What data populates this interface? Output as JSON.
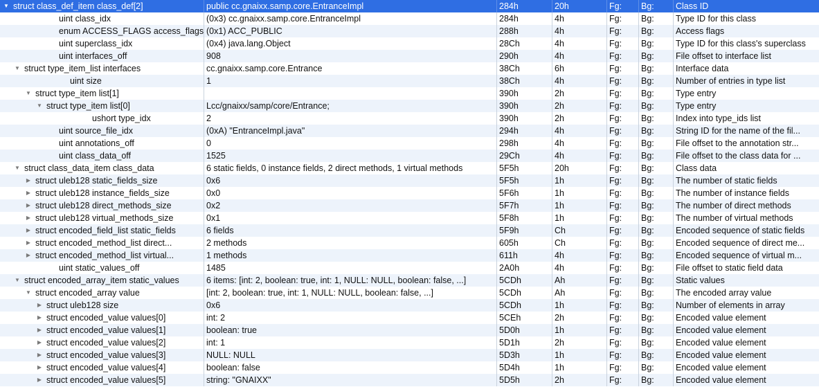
{
  "rows": [
    {
      "name": "struct class_def_item class_def[2]",
      "value": "public cc.gnaixx.samp.core.EntranceImpl",
      "start": "284h",
      "size": "20h",
      "fg": "Fg:",
      "bg": "Bg:",
      "comment": "Class ID",
      "depth": 0,
      "toggle": "expanded",
      "selected": true
    },
    {
      "name": "uint class_idx",
      "value": "(0x3) cc.gnaixx.samp.core.EntranceImpl",
      "start": "284h",
      "size": "4h",
      "fg": "Fg:",
      "bg": "Bg:",
      "comment": "Type ID for this class",
      "depth": 1,
      "toggle": "none"
    },
    {
      "name": "enum ACCESS_FLAGS access_flags",
      "value": "(0x1) ACC_PUBLIC",
      "start": "288h",
      "size": "4h",
      "fg": "Fg:",
      "bg": "Bg:",
      "comment": "Access flags",
      "depth": 1,
      "toggle": "none"
    },
    {
      "name": "uint superclass_idx",
      "value": "(0x4) java.lang.Object",
      "start": "28Ch",
      "size": "4h",
      "fg": "Fg:",
      "bg": "Bg:",
      "comment": "Type ID for this class's superclass",
      "depth": 1,
      "toggle": "none"
    },
    {
      "name": "uint interfaces_off",
      "value": "908",
      "start": "290h",
      "size": "4h",
      "fg": "Fg:",
      "bg": "Bg:",
      "comment": "File offset to interface list",
      "depth": 1,
      "toggle": "none"
    },
    {
      "name": "struct type_item_list interfaces",
      "value": "cc.gnaixx.samp.core.Entrance",
      "start": "38Ch",
      "size": "6h",
      "fg": "Fg:",
      "bg": "Bg:",
      "comment": "Interface data",
      "depth": 1,
      "toggle": "expanded"
    },
    {
      "name": "uint size",
      "value": "1",
      "start": "38Ch",
      "size": "4h",
      "fg": "Fg:",
      "bg": "Bg:",
      "comment": "Number of entries in type list",
      "depth": 2,
      "toggle": "none"
    },
    {
      "name": "struct type_item list[1]",
      "value": "",
      "start": "390h",
      "size": "2h",
      "fg": "Fg:",
      "bg": "Bg:",
      "comment": "Type entry",
      "depth": 2,
      "toggle": "expanded"
    },
    {
      "name": "struct type_item list[0]",
      "value": "Lcc/gnaixx/samp/core/Entrance;",
      "start": "390h",
      "size": "2h",
      "fg": "Fg:",
      "bg": "Bg:",
      "comment": "Type entry",
      "depth": 3,
      "toggle": "expanded"
    },
    {
      "name": "ushort type_idx",
      "value": "2",
      "start": "390h",
      "size": "2h",
      "fg": "Fg:",
      "bg": "Bg:",
      "comment": "Index into type_ids list",
      "depth": 4,
      "toggle": "none"
    },
    {
      "name": "uint source_file_idx",
      "value": "(0xA) \"EntranceImpl.java\"",
      "start": "294h",
      "size": "4h",
      "fg": "Fg:",
      "bg": "Bg:",
      "comment": "String ID for the name of the fil...",
      "depth": 1,
      "toggle": "none"
    },
    {
      "name": "uint annotations_off",
      "value": "0",
      "start": "298h",
      "size": "4h",
      "fg": "Fg:",
      "bg": "Bg:",
      "comment": "File offset to the annotation str...",
      "depth": 1,
      "toggle": "none"
    },
    {
      "name": "uint class_data_off",
      "value": "1525",
      "start": "29Ch",
      "size": "4h",
      "fg": "Fg:",
      "bg": "Bg:",
      "comment": "File offset to the class data for ...",
      "depth": 1,
      "toggle": "none"
    },
    {
      "name": "struct class_data_item class_data",
      "value": "6 static fields, 0 instance fields, 2 direct methods, 1 virtual methods",
      "start": "5F5h",
      "size": "20h",
      "fg": "Fg:",
      "bg": "Bg:",
      "comment": "Class data",
      "depth": 1,
      "toggle": "expanded"
    },
    {
      "name": "struct uleb128 static_fields_size",
      "value": "0x6",
      "start": "5F5h",
      "size": "1h",
      "fg": "Fg:",
      "bg": "Bg:",
      "comment": "The number of static fields",
      "depth": 2,
      "toggle": "collapsed"
    },
    {
      "name": "struct uleb128 instance_fields_size",
      "value": "0x0",
      "start": "5F6h",
      "size": "1h",
      "fg": "Fg:",
      "bg": "Bg:",
      "comment": "The number of instance fields",
      "depth": 2,
      "toggle": "collapsed"
    },
    {
      "name": "struct uleb128 direct_methods_size",
      "value": "0x2",
      "start": "5F7h",
      "size": "1h",
      "fg": "Fg:",
      "bg": "Bg:",
      "comment": "The number of direct methods",
      "depth": 2,
      "toggle": "collapsed"
    },
    {
      "name": "struct uleb128 virtual_methods_size",
      "value": "0x1",
      "start": "5F8h",
      "size": "1h",
      "fg": "Fg:",
      "bg": "Bg:",
      "comment": "The number of virtual methods",
      "depth": 2,
      "toggle": "collapsed"
    },
    {
      "name": "struct encoded_field_list static_fields",
      "value": "6 fields",
      "start": "5F9h",
      "size": "Ch",
      "fg": "Fg:",
      "bg": "Bg:",
      "comment": "Encoded sequence of static fields",
      "depth": 2,
      "toggle": "collapsed"
    },
    {
      "name": "struct encoded_method_list direct...",
      "value": "2 methods",
      "start": "605h",
      "size": "Ch",
      "fg": "Fg:",
      "bg": "Bg:",
      "comment": "Encoded sequence of direct me...",
      "depth": 2,
      "toggle": "collapsed"
    },
    {
      "name": "struct encoded_method_list virtual...",
      "value": "1 methods",
      "start": "611h",
      "size": "4h",
      "fg": "Fg:",
      "bg": "Bg:",
      "comment": "Encoded sequence of virtual m...",
      "depth": 2,
      "toggle": "collapsed"
    },
    {
      "name": "uint static_values_off",
      "value": "1485",
      "start": "2A0h",
      "size": "4h",
      "fg": "Fg:",
      "bg": "Bg:",
      "comment": "File offset to static field data",
      "depth": 1,
      "toggle": "none"
    },
    {
      "name": "struct encoded_array_item static_values",
      "value": "6 items: [int: 2, boolean: true, int: 1, NULL: NULL, boolean: false, ...]",
      "start": "5CDh",
      "size": "Ah",
      "fg": "Fg:",
      "bg": "Bg:",
      "comment": "Static values",
      "depth": 1,
      "toggle": "expanded"
    },
    {
      "name": "struct encoded_array value",
      "value": "[int: 2, boolean: true, int: 1, NULL: NULL, boolean: false, ...]",
      "start": "5CDh",
      "size": "Ah",
      "fg": "Fg:",
      "bg": "Bg:",
      "comment": "The encoded array value",
      "depth": 2,
      "toggle": "expanded"
    },
    {
      "name": "struct uleb128 size",
      "value": "0x6",
      "start": "5CDh",
      "size": "1h",
      "fg": "Fg:",
      "bg": "Bg:",
      "comment": "Number of elements in array",
      "depth": 3,
      "toggle": "collapsed"
    },
    {
      "name": "struct encoded_value values[0]",
      "value": "int: 2",
      "start": "5CEh",
      "size": "2h",
      "fg": "Fg:",
      "bg": "Bg:",
      "comment": "Encoded value element",
      "depth": 3,
      "toggle": "collapsed"
    },
    {
      "name": "struct encoded_value values[1]",
      "value": "boolean: true",
      "start": "5D0h",
      "size": "1h",
      "fg": "Fg:",
      "bg": "Bg:",
      "comment": "Encoded value element",
      "depth": 3,
      "toggle": "collapsed"
    },
    {
      "name": "struct encoded_value values[2]",
      "value": "int: 1",
      "start": "5D1h",
      "size": "2h",
      "fg": "Fg:",
      "bg": "Bg:",
      "comment": "Encoded value element",
      "depth": 3,
      "toggle": "collapsed"
    },
    {
      "name": "struct encoded_value values[3]",
      "value": "NULL: NULL",
      "start": "5D3h",
      "size": "1h",
      "fg": "Fg:",
      "bg": "Bg:",
      "comment": "Encoded value element",
      "depth": 3,
      "toggle": "collapsed"
    },
    {
      "name": "struct encoded_value values[4]",
      "value": "boolean: false",
      "start": "5D4h",
      "size": "1h",
      "fg": "Fg:",
      "bg": "Bg:",
      "comment": "Encoded value element",
      "depth": 3,
      "toggle": "collapsed"
    },
    {
      "name": "struct encoded_value values[5]",
      "value": "string: \"GNAIXX\"",
      "start": "5D5h",
      "size": "2h",
      "fg": "Fg:",
      "bg": "Bg:",
      "comment": "Encoded value element",
      "depth": 3,
      "toggle": "collapsed"
    }
  ],
  "colors": {
    "selection": "#2f6ee3",
    "stripe": "#edf3fb",
    "separator": "#c9d2dd"
  },
  "icons": {
    "expanded": "disclosure-triangle-down-icon",
    "collapsed": "disclosure-triangle-right-icon"
  }
}
